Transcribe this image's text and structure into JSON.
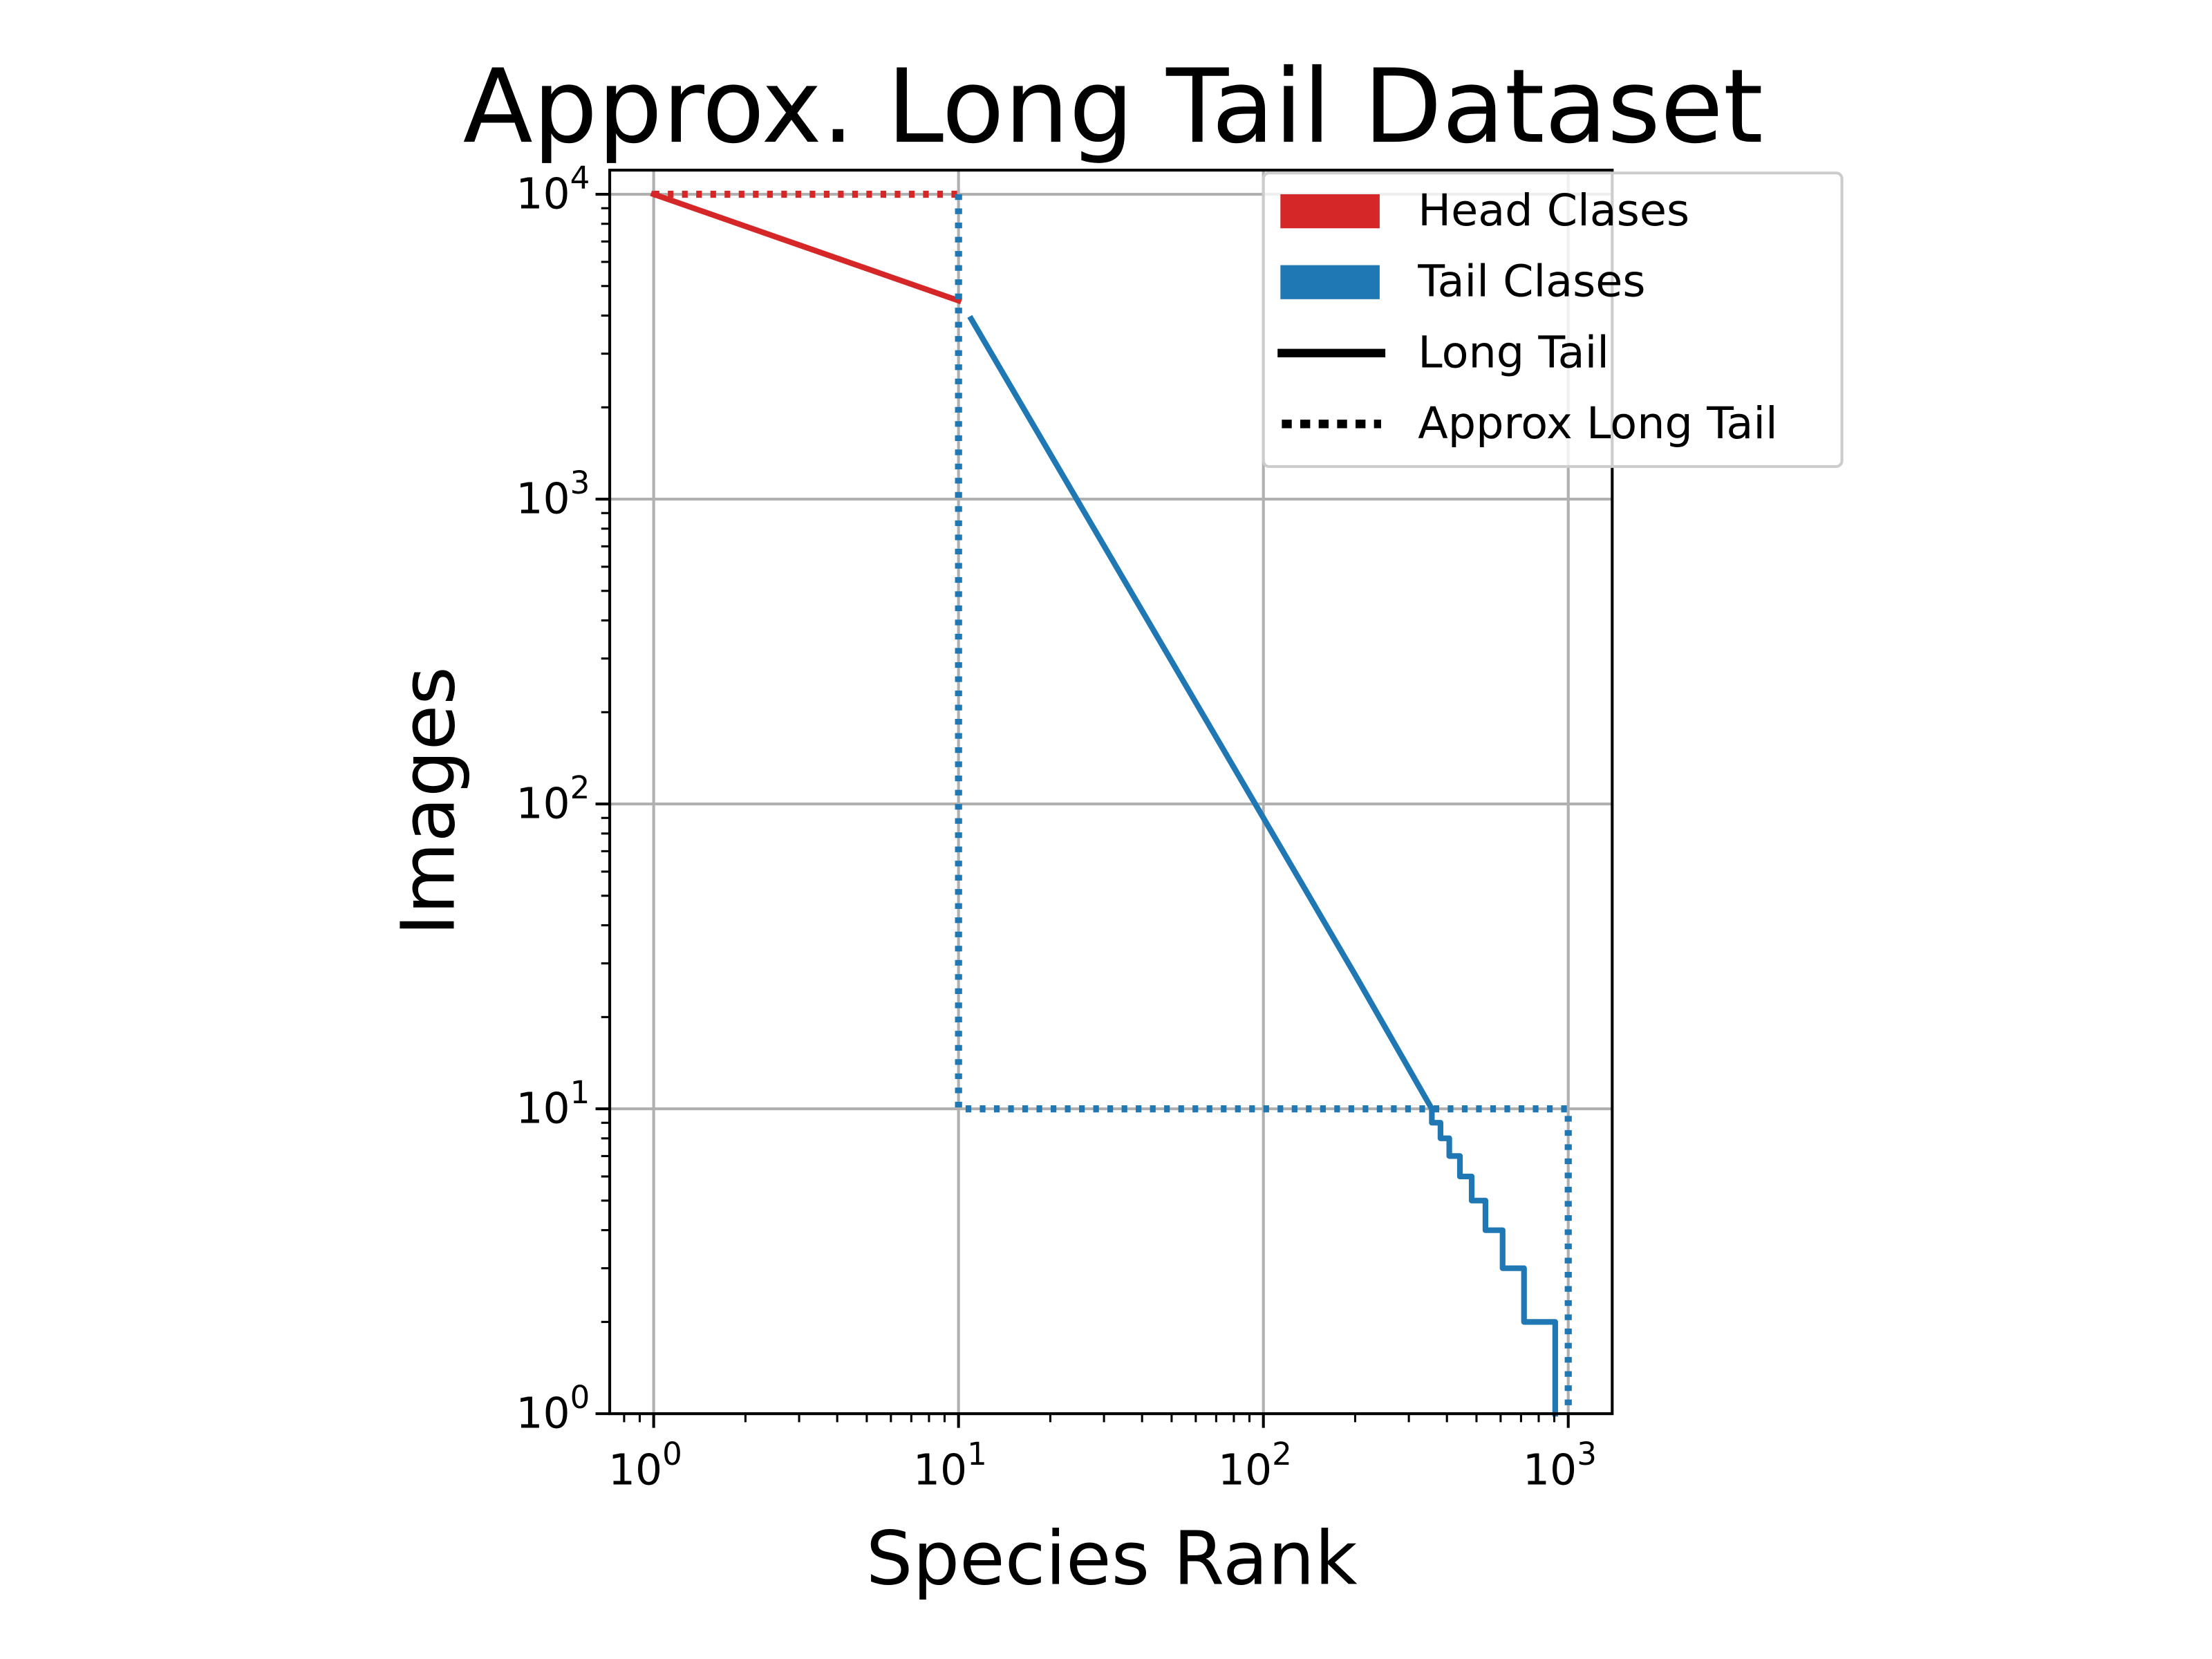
{
  "chart_data": {
    "type": "line",
    "title": "Approx. Long Tail Dataset",
    "xlabel": "Species Rank",
    "ylabel": "Images",
    "xscale": "log",
    "yscale": "log",
    "xlim": [
      0.72,
      1390
    ],
    "ylim": [
      1,
      12000
    ],
    "grid": true,
    "legend_placement": "top-right",
    "x_ticks": [
      {
        "base": "10",
        "exp": "0",
        "value": 1
      },
      {
        "base": "10",
        "exp": "1",
        "value": 10
      },
      {
        "base": "10",
        "exp": "2",
        "value": 100
      },
      {
        "base": "10",
        "exp": "3",
        "value": 1000
      }
    ],
    "y_ticks": [
      {
        "base": "10",
        "exp": "0",
        "value": 1
      },
      {
        "base": "10",
        "exp": "1",
        "value": 10
      },
      {
        "base": "10",
        "exp": "2",
        "value": 100
      },
      {
        "base": "10",
        "exp": "3",
        "value": 1000
      },
      {
        "base": "10",
        "exp": "4",
        "value": 10000
      }
    ],
    "colors": {
      "head": "#d62728",
      "tail": "#1f77b4"
    },
    "legend": [
      {
        "label": "Head Clases",
        "kind": "patch",
        "color": "#d62728"
      },
      {
        "label": "Tail Clases",
        "kind": "patch",
        "color": "#1f77b4"
      },
      {
        "label": "Long Tail",
        "kind": "solid",
        "color": "#000000"
      },
      {
        "label": "Approx Long Tail",
        "kind": "dotted",
        "color": "#000000"
      }
    ],
    "series": [
      {
        "name": "Head long tail",
        "group": "head",
        "style": "solid",
        "points": [
          [
            1,
            10000
          ],
          [
            10,
            4480
          ]
        ]
      },
      {
        "name": "Head approx",
        "group": "head",
        "style": "dotted",
        "points": [
          [
            1,
            10000
          ],
          [
            10,
            10000
          ]
        ]
      },
      {
        "name": "Tail approx",
        "group": "tail",
        "style": "dotted",
        "points": [
          [
            10,
            10000
          ],
          [
            10,
            10
          ],
          [
            1000,
            10
          ],
          [
            1000,
            1
          ]
        ]
      },
      {
        "name": "Tail long tail",
        "group": "tail",
        "style": "solid",
        "points": [
          [
            11,
            3900
          ],
          [
            30,
            703
          ],
          [
            100,
            90
          ],
          [
            200,
            27.5
          ],
          [
            357,
            10
          ],
          [
            357,
            9
          ],
          [
            381,
            9
          ],
          [
            381,
            8
          ],
          [
            407,
            8
          ],
          [
            407,
            7
          ],
          [
            441,
            7
          ],
          [
            441,
            6
          ],
          [
            482,
            6
          ],
          [
            482,
            5
          ],
          [
            535,
            5
          ],
          [
            535,
            4
          ],
          [
            609,
            4
          ],
          [
            609,
            3
          ],
          [
            716,
            3
          ],
          [
            716,
            2
          ],
          [
            906,
            2
          ],
          [
            906,
            1
          ]
        ]
      }
    ]
  }
}
